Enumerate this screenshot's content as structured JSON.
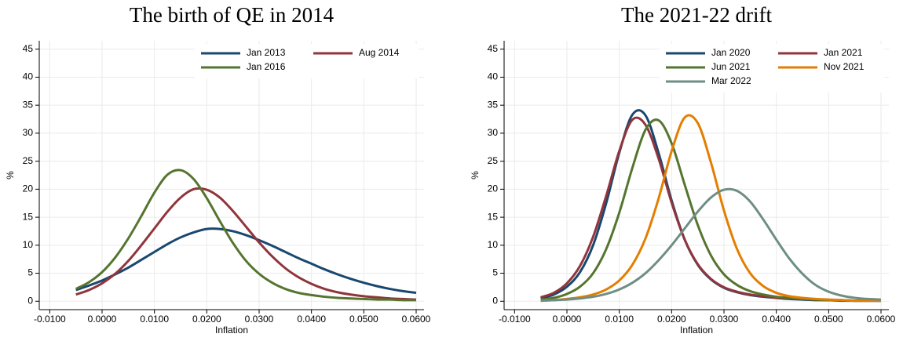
{
  "chart_data": [
    {
      "type": "line",
      "title": "The birth of QE in 2014",
      "x_label": "Inflation",
      "y_label": "%",
      "x": [
        -0.005,
        -0.0025,
        0,
        0.0025,
        0.005,
        0.0075,
        0.01,
        0.0125,
        0.015,
        0.0175,
        0.02,
        0.0225,
        0.025,
        0.0275,
        0.03,
        0.0325,
        0.035,
        0.0375,
        0.04,
        0.0425,
        0.045,
        0.0475,
        0.05,
        0.0525,
        0.055,
        0.0575,
        0.06
      ],
      "series": [
        {
          "name": "Jan 2013",
          "color": "#1a476f",
          "values": [
            2.0,
            2.8,
            3.7,
            4.8,
            6.0,
            7.4,
            8.8,
            10.2,
            11.4,
            12.3,
            12.9,
            12.9,
            12.5,
            11.8,
            10.9,
            9.9,
            8.8,
            7.7,
            6.7,
            5.7,
            4.8,
            4.0,
            3.3,
            2.7,
            2.2,
            1.8,
            1.5
          ]
        },
        {
          "name": "Aug 2014",
          "color": "#90353b",
          "values": [
            1.2,
            2.0,
            3.2,
            4.9,
            7.2,
            10.0,
            13.0,
            16.0,
            18.5,
            20.0,
            19.9,
            18.5,
            16.1,
            13.3,
            10.5,
            8.0,
            5.9,
            4.3,
            3.1,
            2.2,
            1.6,
            1.2,
            0.9,
            0.7,
            0.5,
            0.4,
            0.3
          ]
        },
        {
          "name": "Jan 2016",
          "color": "#55752f",
          "values": [
            2.2,
            3.4,
            5.2,
            7.8,
            11.2,
            15.2,
            19.4,
            22.6,
            23.4,
            21.8,
            18.4,
            14.3,
            10.4,
            7.2,
            4.9,
            3.3,
            2.2,
            1.5,
            1.1,
            0.8,
            0.6,
            0.5,
            0.4,
            0.3,
            0.3,
            0.2,
            0.2
          ]
        }
      ],
      "xlim": [
        -0.012,
        0.0615
      ],
      "ylim": [
        -1.5,
        46.5
      ],
      "xticks": [
        {
          "value": -0.01,
          "label": "-0.0100"
        },
        {
          "value": 0,
          "label": "0.0000"
        },
        {
          "value": 0.01,
          "label": "0.0100"
        },
        {
          "value": 0.02,
          "label": "0.0200"
        },
        {
          "value": 0.03,
          "label": "0.0300"
        },
        {
          "value": 0.04,
          "label": "0.0400"
        },
        {
          "value": 0.05,
          "label": "0.0500"
        },
        {
          "value": 0.06,
          "label": "0.0600"
        }
      ],
      "yticks": [
        0,
        5,
        10,
        15,
        20,
        25,
        30,
        35,
        40,
        45
      ],
      "grid": true,
      "legend": "top-right",
      "legend_columns": 2
    },
    {
      "type": "line",
      "title": "The 2021-22 drift",
      "x_label": "Inflation",
      "y_label": "%",
      "x": [
        -0.005,
        -0.0025,
        0,
        0.0025,
        0.005,
        0.0075,
        0.01,
        0.0125,
        0.015,
        0.0175,
        0.02,
        0.0225,
        0.025,
        0.0275,
        0.03,
        0.0325,
        0.035,
        0.0375,
        0.04,
        0.0425,
        0.045,
        0.0475,
        0.05,
        0.0525,
        0.055,
        0.0575,
        0.06
      ],
      "series": [
        {
          "name": "Jan 2020",
          "color": "#1a476f",
          "values": [
            0.5,
            1.2,
            2.6,
            5.2,
            10.0,
            17.5,
            26.5,
            33.3,
            33.2,
            26.5,
            18.0,
            11.0,
            6.5,
            3.9,
            2.4,
            1.6,
            1.1,
            0.8,
            0.6,
            0.4,
            0.3,
            0.2,
            0.2,
            0.1,
            0.1,
            0.1,
            0.1
          ]
        },
        {
          "name": "Jan 2021",
          "color": "#90353b",
          "values": [
            0.7,
            1.5,
            3.2,
            6.3,
            11.5,
            18.8,
            26.8,
            32.4,
            31.5,
            25.5,
            17.6,
            11.0,
            6.6,
            4.0,
            2.5,
            1.7,
            1.2,
            0.9,
            0.6,
            0.5,
            0.4,
            0.3,
            0.2,
            0.2,
            0.1,
            0.1,
            0.1
          ]
        },
        {
          "name": "Jun 2021",
          "color": "#55752f",
          "values": [
            0.3,
            0.6,
            1.3,
            2.6,
            5.0,
            9.3,
            15.8,
            23.8,
            30.6,
            32.3,
            28.2,
            20.8,
            13.6,
            8.2,
            4.8,
            2.9,
            1.8,
            1.2,
            0.8,
            0.6,
            0.4,
            0.3,
            0.2,
            0.2,
            0.1,
            0.1,
            0.1
          ]
        },
        {
          "name": "Nov 2021",
          "color": "#e37e00",
          "values": [
            0.1,
            0.2,
            0.4,
            0.7,
            1.2,
            2.1,
            3.7,
            6.5,
            11.2,
            18.3,
            26.8,
            32.8,
            31.8,
            24.8,
            16.2,
            9.3,
            5.0,
            2.7,
            1.5,
            0.9,
            0.6,
            0.4,
            0.3,
            0.2,
            0.1,
            0.1,
            0.1
          ]
        },
        {
          "name": "Mar 2022",
          "color": "#6e8e84",
          "values": [
            0.1,
            0.2,
            0.3,
            0.5,
            0.8,
            1.3,
            2.1,
            3.3,
            5.0,
            7.3,
            10.0,
            13.0,
            16.0,
            18.5,
            19.9,
            19.7,
            17.8,
            14.6,
            11.0,
            7.6,
            4.9,
            2.9,
            1.7,
            1.0,
            0.6,
            0.4,
            0.3
          ]
        }
      ],
      "xlim": [
        -0.012,
        0.0615
      ],
      "ylim": [
        -1.5,
        46.5
      ],
      "xticks": [
        {
          "value": -0.01,
          "label": "-0.0100"
        },
        {
          "value": 0,
          "label": "0.0000"
        },
        {
          "value": 0.01,
          "label": "0.0100"
        },
        {
          "value": 0.02,
          "label": "0.0200"
        },
        {
          "value": 0.03,
          "label": "0.0300"
        },
        {
          "value": 0.04,
          "label": "0.0400"
        },
        {
          "value": 0.05,
          "label": "0.0500"
        },
        {
          "value": 0.06,
          "label": "0.0600"
        }
      ],
      "yticks": [
        0,
        5,
        10,
        15,
        20,
        25,
        30,
        35,
        40,
        45
      ],
      "grid": true,
      "legend": "top-right",
      "legend_columns": 2
    }
  ]
}
